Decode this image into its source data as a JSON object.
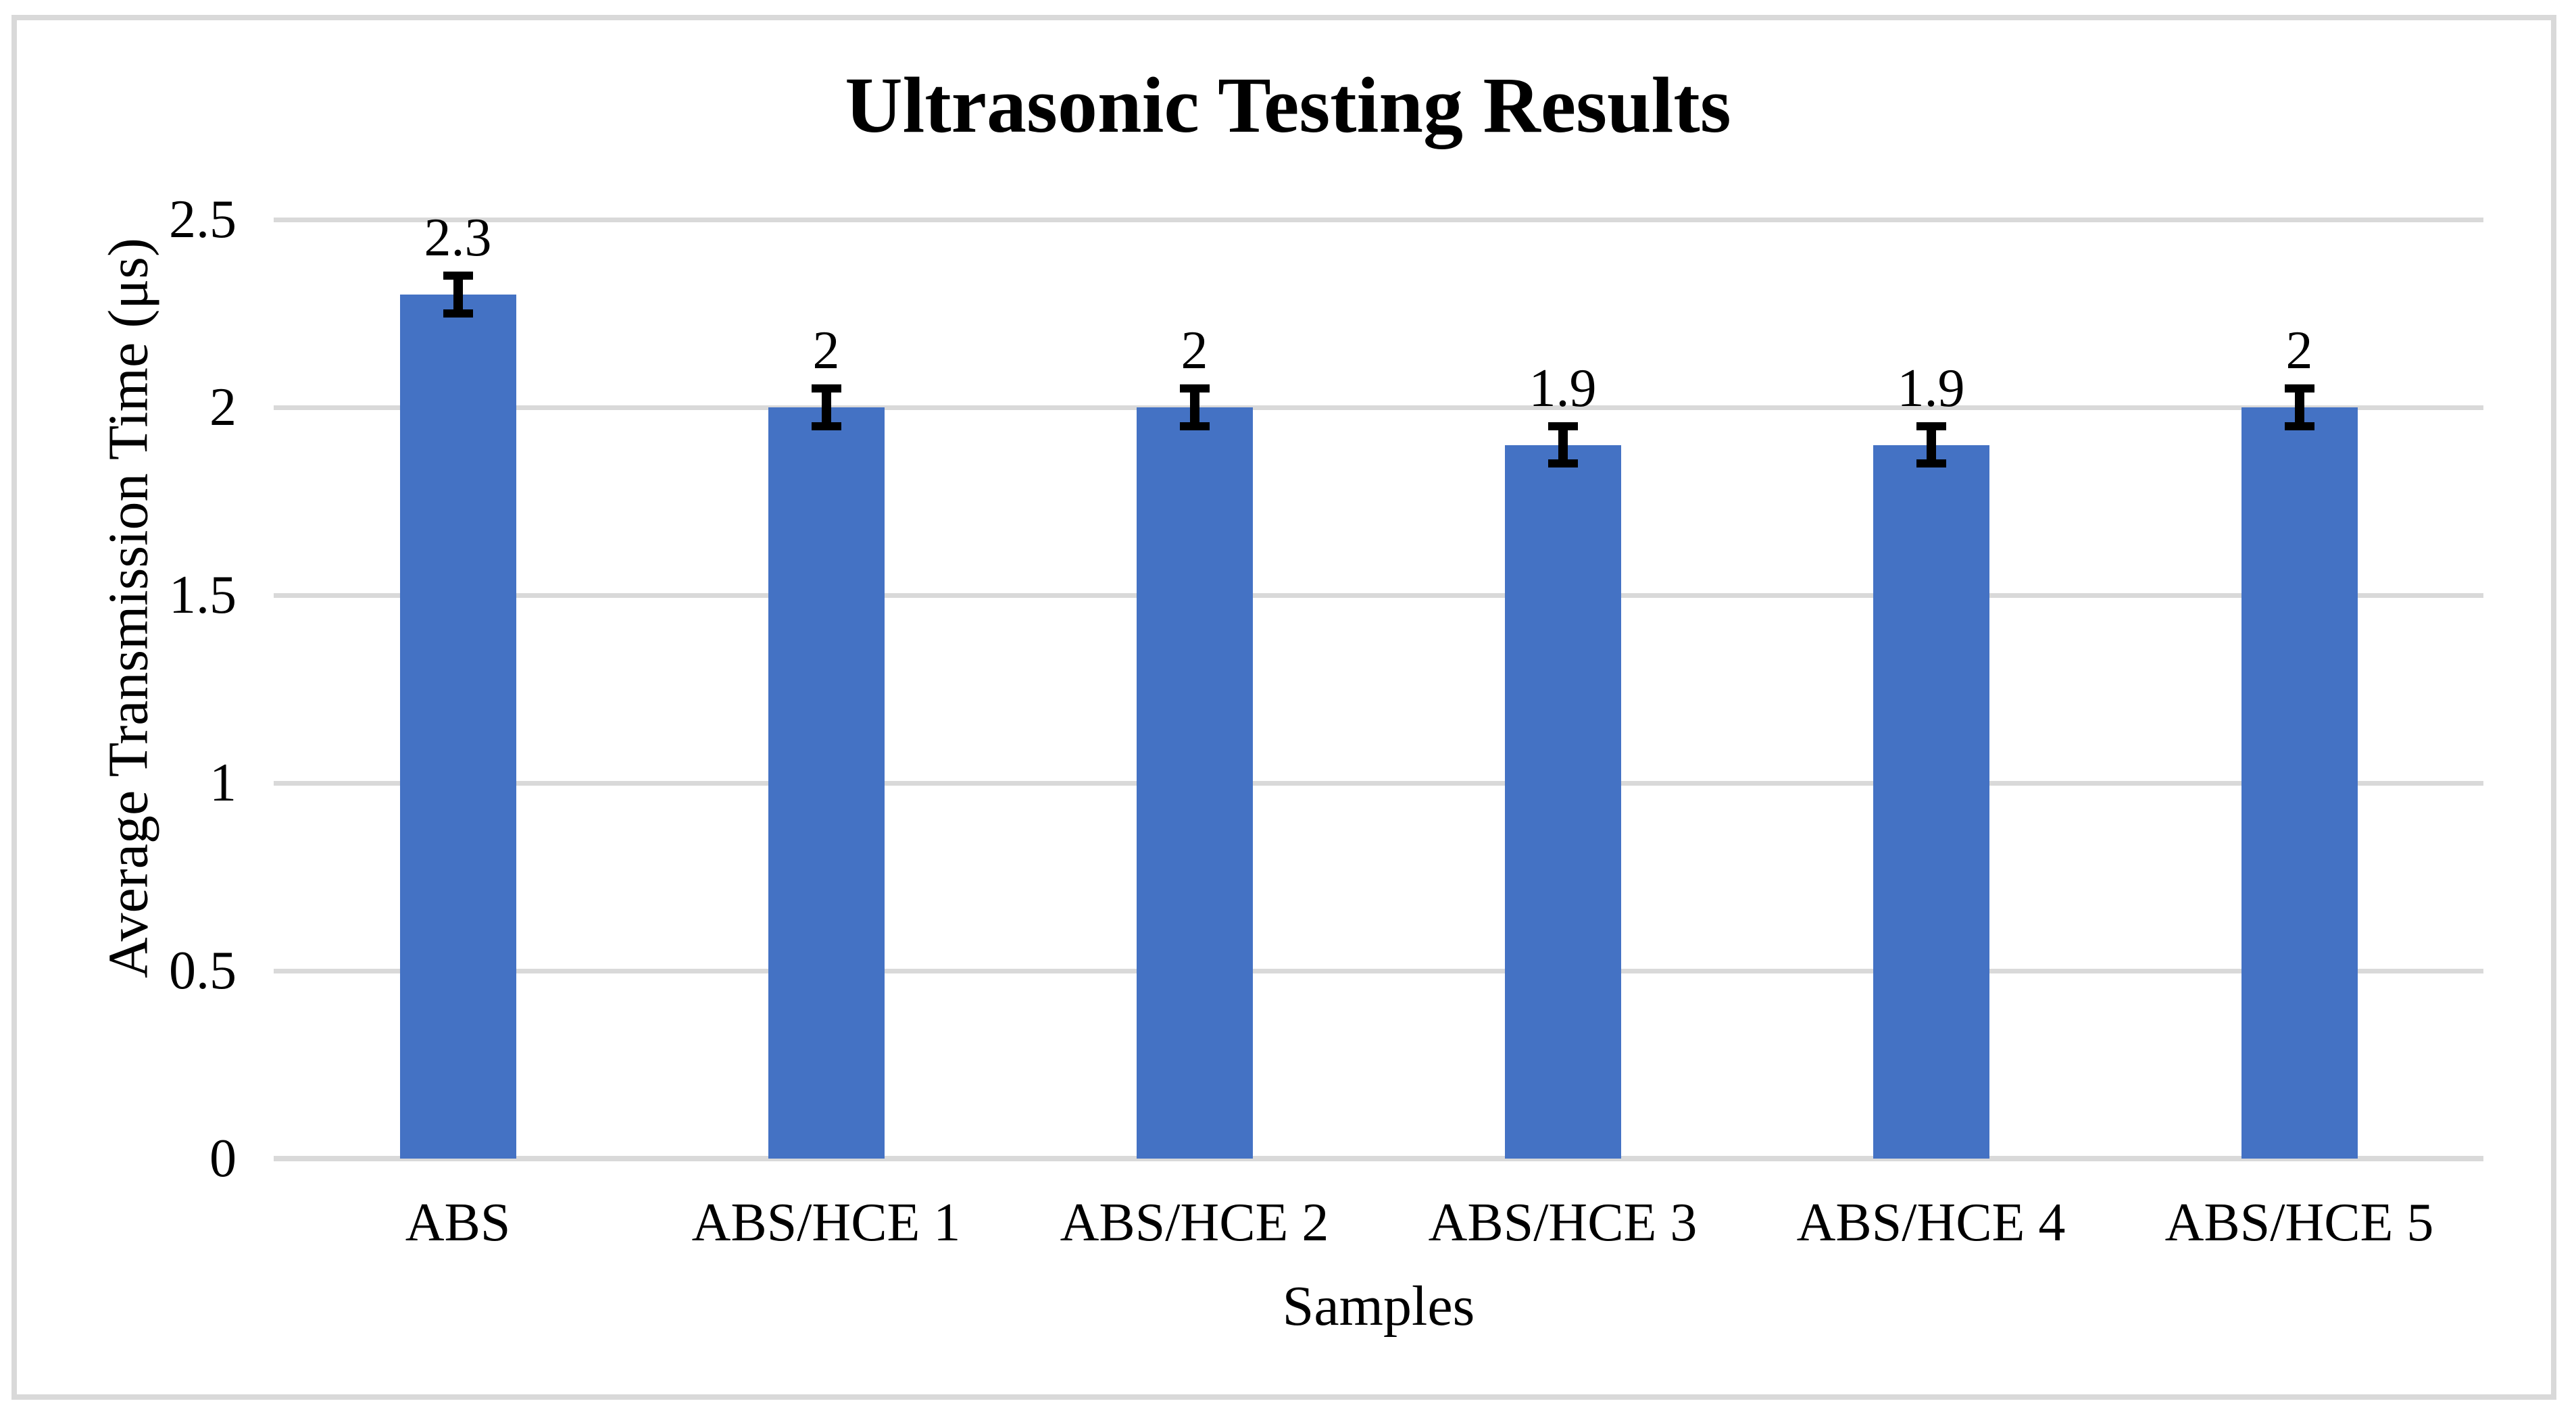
{
  "page": {
    "background_color": "#ffffff",
    "frame_color": "#D9D9D9"
  },
  "chart_data": {
    "type": "bar",
    "title": "Ultrasonic Testing Results",
    "xlabel": "Samples",
    "ylabel": "Average Transmission Time (μs)",
    "categories": [
      "ABS",
      "ABS/HCE 1",
      "ABS/HCE 2",
      "ABS/HCE 3",
      "ABS/HCE 4",
      "ABS/HCE 5"
    ],
    "values": [
      2.3,
      2,
      2,
      1.9,
      1.9,
      2
    ],
    "value_labels": [
      "2.3",
      "2",
      "2",
      "1.9",
      "1.9",
      "2"
    ],
    "error": 0.05,
    "ylim": [
      0,
      2.5
    ],
    "yticks": [
      2.5,
      2,
      1.5,
      1,
      0.5,
      0
    ],
    "ytick_labels": [
      "2.5",
      "2",
      "1.5",
      "1",
      "0.5",
      "0"
    ],
    "grid": true,
    "legend": "none",
    "bar_color": "#4472C4",
    "gridline_color": "#D9D9D9",
    "axis_line_color": "#D9D9D9",
    "error_bar_color": "#000000",
    "text_color": "#000000"
  }
}
